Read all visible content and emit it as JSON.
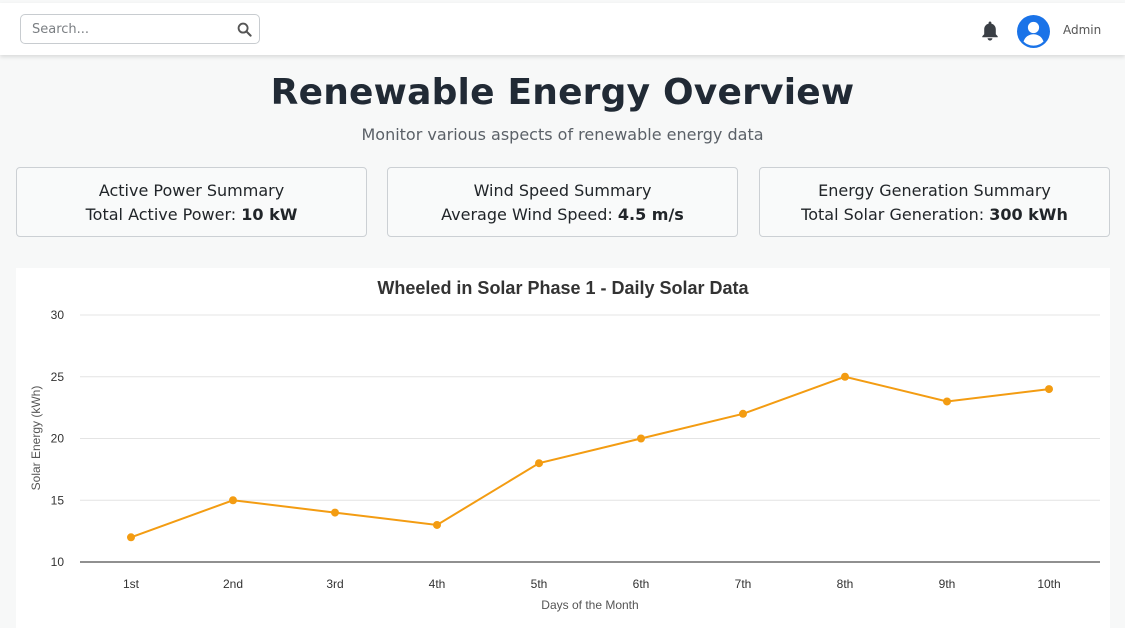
{
  "header": {
    "search_placeholder": "Search...",
    "user_label": "Admin"
  },
  "page": {
    "title": "Renewable Energy Overview",
    "subtitle": "Monitor various aspects of renewable energy data"
  },
  "cards": [
    {
      "title": "Active Power Summary",
      "label": "Total Active Power: ",
      "value": "10 kW"
    },
    {
      "title": "Wind Speed Summary",
      "label": "Average Wind Speed: ",
      "value": "4.5 m/s"
    },
    {
      "title": "Energy Generation Summary",
      "label": "Total Solar Generation: ",
      "value": "300 kWh"
    }
  ],
  "colors": {
    "accent": "#1a73e8",
    "series": "#f39c12",
    "title_text": "#212a35"
  },
  "icons": {
    "search": "search-icon",
    "notifications": "bell-icon",
    "user": "user-avatar-icon"
  },
  "chart_data": {
    "type": "line",
    "title": "Wheeled in Solar Phase 1 - Daily Solar Data",
    "xlabel": "Days of the Month",
    "ylabel": "Solar Energy (kWh)",
    "categories": [
      "1st",
      "2nd",
      "3rd",
      "4th",
      "5th",
      "6th",
      "7th",
      "8th",
      "9th",
      "10th"
    ],
    "values": [
      12,
      15,
      14,
      13,
      18,
      20,
      22,
      25,
      23,
      24
    ],
    "ylim": [
      10,
      30
    ],
    "yticks": [
      10,
      15,
      20,
      25,
      30
    ],
    "grid": true,
    "legend": "none"
  }
}
